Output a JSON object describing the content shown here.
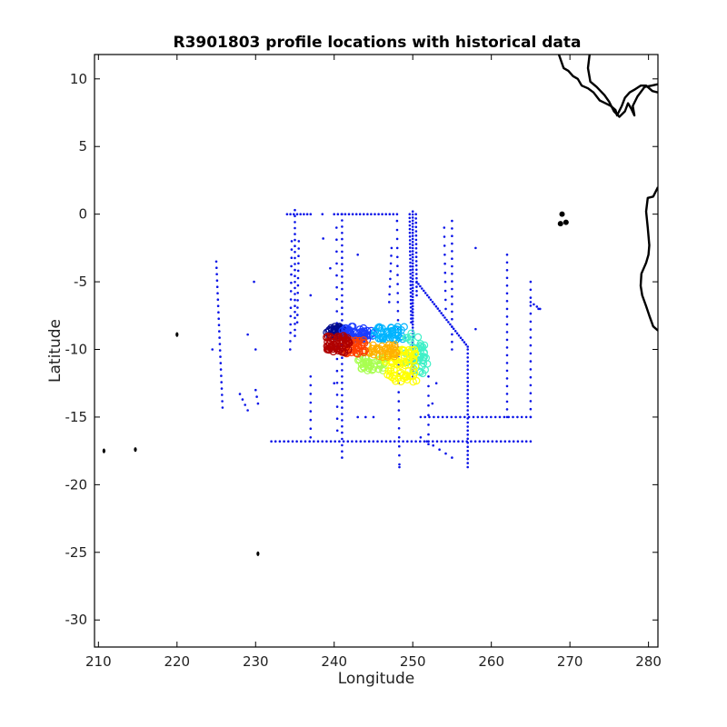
{
  "chart_data": {
    "type": "scatter",
    "title": "R3901803 profile locations with historical data",
    "xlabel": "Longitude",
    "ylabel": "Latitude",
    "xlim": [
      209.5,
      281.2
    ],
    "ylim": [
      -32.0,
      11.8
    ],
    "xticks": [
      210,
      220,
      230,
      240,
      250,
      260,
      270,
      280
    ],
    "yticks": [
      10,
      5,
      0,
      -5,
      -10,
      -15,
      -20,
      -25,
      -30
    ],
    "grid": false,
    "colors": {
      "historical": "#0a14e8",
      "coast": "#000000",
      "profile_ramp": [
        "#000a8f",
        "#1c3cff",
        "#00b4ff",
        "#40f0c8",
        "#a8ff50",
        "#ffff00",
        "#ffb000",
        "#ff4000",
        "#b00000"
      ]
    },
    "historical_tracks": [
      {
        "from": [
          225.0,
          -3.5
        ],
        "to": [
          225.8,
          -14.3
        ],
        "n": 24
      },
      {
        "from": [
          232.0,
          -16.8
        ],
        "to": [
          265.0,
          -16.8
        ],
        "n": 62
      },
      {
        "from": [
          234.0,
          0.0
        ],
        "to": [
          237.0,
          0.0
        ],
        "n": 8
      },
      {
        "from": [
          235.0,
          0.3
        ],
        "to": [
          235.0,
          -9.0
        ],
        "n": 22
      },
      {
        "from": [
          235.5,
          -2.0
        ],
        "to": [
          235.3,
          -8.0
        ],
        "n": 12
      },
      {
        "from": [
          234.6,
          -2.0
        ],
        "to": [
          234.4,
          -10.0
        ],
        "n": 14
      },
      {
        "from": [
          240.0,
          0.0
        ],
        "to": [
          248.0,
          0.0
        ],
        "n": 18
      },
      {
        "from": [
          241.0,
          0.0
        ],
        "to": [
          241.0,
          -18.0
        ],
        "n": 40
      },
      {
        "from": [
          240.3,
          -1.0
        ],
        "to": [
          240.4,
          -16.0
        ],
        "n": 18
      },
      {
        "from": [
          250.0,
          0.2
        ],
        "to": [
          250.0,
          -12.0
        ],
        "n": 55
      },
      {
        "from": [
          249.6,
          0.0
        ],
        "to": [
          249.8,
          -8.0
        ],
        "n": 30
      },
      {
        "from": [
          250.4,
          0.0
        ],
        "to": [
          250.5,
          -6.0
        ],
        "n": 20
      },
      {
        "from": [
          250.5,
          -5.0
        ],
        "to": [
          257.0,
          -9.8
        ],
        "n": 30
      },
      {
        "from": [
          257.0,
          -10.0
        ],
        "to": [
          257.0,
          -18.7
        ],
        "n": 30
      },
      {
        "from": [
          248.0,
          -0.5
        ],
        "to": [
          248.3,
          -18.5
        ],
        "n": 28
      },
      {
        "from": [
          247.3,
          -2.5
        ],
        "to": [
          247.0,
          -6.5
        ],
        "n": 8
      },
      {
        "from": [
          255.0,
          -0.5
        ],
        "to": [
          255.0,
          -10.0
        ],
        "n": 18
      },
      {
        "from": [
          254.0,
          -1.0
        ],
        "to": [
          254.2,
          -7.0
        ],
        "n": 10
      },
      {
        "from": [
          262.0,
          -3.0
        ],
        "to": [
          262.0,
          -15.0
        ],
        "n": 22
      },
      {
        "from": [
          251.0,
          -15.0
        ],
        "to": [
          265.0,
          -15.0
        ],
        "n": 26
      },
      {
        "from": [
          265.0,
          -5.0
        ],
        "to": [
          265.0,
          -15.0
        ],
        "n": 18
      },
      {
        "from": [
          265.0,
          -6.5
        ],
        "to": [
          266.2,
          -7.0
        ],
        "n": 4
      },
      {
        "from": [
          237.0,
          -12.0
        ],
        "to": [
          237.0,
          -16.5
        ],
        "n": 8
      },
      {
        "from": [
          230.0,
          -13.0
        ],
        "to": [
          230.3,
          -14.0
        ],
        "n": 3
      },
      {
        "from": [
          228.0,
          -13.3
        ],
        "to": [
          229.0,
          -14.5
        ],
        "n": 4
      },
      {
        "from": [
          251.0,
          -16.5
        ],
        "to": [
          255.0,
          -18.0
        ],
        "n": 6
      },
      {
        "from": [
          252.0,
          -12.0
        ],
        "to": [
          252.0,
          -17.0
        ],
        "n": 8
      }
    ],
    "historical_points": [
      [
        229.0,
        -8.9
      ],
      [
        229.8,
        -5.0
      ],
      [
        230.0,
        -10.0
      ],
      [
        237.0,
        -6.0
      ],
      [
        238.5,
        0.0
      ],
      [
        243.0,
        -3.0
      ],
      [
        244.0,
        -15.0
      ],
      [
        243.0,
        -15.0
      ],
      [
        245.0,
        -15.0
      ],
      [
        253.0,
        -12.5
      ],
      [
        252.5,
        -14.0
      ],
      [
        258.0,
        -2.5
      ],
      [
        258.0,
        -8.5
      ],
      [
        266.0,
        -7.0
      ],
      [
        248.3,
        -18.7
      ],
      [
        224.5,
        -10.0
      ],
      [
        238.6,
        -1.8
      ],
      [
        239.5,
        -4.0
      ],
      [
        240.0,
        -12.5
      ]
    ],
    "profile_clusters": [
      {
        "x": [
          239.0,
          241.5
        ],
        "y": [
          -8.3,
          -9.1
        ],
        "color": 0,
        "n": 40
      },
      {
        "x": [
          241.0,
          245.0
        ],
        "y": [
          -8.3,
          -9.3
        ],
        "color": 1,
        "n": 55
      },
      {
        "x": [
          245.0,
          249.0
        ],
        "y": [
          -8.3,
          -9.3
        ],
        "color": 2,
        "n": 45
      },
      {
        "x": [
          249.0,
          251.5
        ],
        "y": [
          -8.8,
          -11.0
        ],
        "color": 3,
        "n": 30
      },
      {
        "x": [
          250.0,
          252.0
        ],
        "y": [
          -10.5,
          -11.8
        ],
        "color": 3,
        "n": 20
      },
      {
        "x": [
          243.0,
          246.5
        ],
        "y": [
          -10.5,
          -11.6
        ],
        "color": 4,
        "n": 40
      },
      {
        "x": [
          246.5,
          250.5
        ],
        "y": [
          -10.0,
          -12.4
        ],
        "color": 5,
        "n": 70
      },
      {
        "x": [
          244.0,
          248.0
        ],
        "y": [
          -9.6,
          -10.6
        ],
        "color": 6,
        "n": 40
      },
      {
        "x": [
          241.5,
          244.0
        ],
        "y": [
          -9.3,
          -10.4
        ],
        "color": 7,
        "n": 35
      },
      {
        "x": [
          239.0,
          242.0
        ],
        "y": [
          -9.0,
          -10.3
        ],
        "color": 8,
        "n": 60
      }
    ],
    "islands": [
      [
        220.0,
        -8.9
      ],
      [
        230.3,
        -25.1
      ],
      [
        210.7,
        -17.5
      ],
      [
        214.7,
        -17.4
      ]
    ],
    "coastlines": [
      [
        [
          268.6,
          11.8
        ],
        [
          269.2,
          10.8
        ],
        [
          269.8,
          10.6
        ],
        [
          270.4,
          10.2
        ],
        [
          271.0,
          10.0
        ],
        [
          271.5,
          9.5
        ],
        [
          272.3,
          9.3
        ],
        [
          273.0,
          9.0
        ],
        [
          273.8,
          8.4
        ],
        [
          274.5,
          8.2
        ],
        [
          275.2,
          8.0
        ],
        [
          275.8,
          7.7
        ],
        [
          276.0,
          7.3
        ],
        [
          276.6,
          8.0
        ],
        [
          277.0,
          8.6
        ],
        [
          277.6,
          9.0
        ],
        [
          278.2,
          9.2
        ],
        [
          279.0,
          9.5
        ],
        [
          279.7,
          9.5
        ],
        [
          280.5,
          9.1
        ],
        [
          281.2,
          9.0
        ]
      ],
      [
        [
          272.5,
          11.8
        ],
        [
          272.3,
          10.8
        ],
        [
          272.6,
          9.8
        ],
        [
          273.4,
          9.4
        ],
        [
          274.4,
          8.8
        ],
        [
          275.0,
          8.3
        ],
        [
          275.6,
          7.6
        ],
        [
          276.3,
          7.2
        ],
        [
          277.0,
          7.6
        ],
        [
          277.4,
          8.2
        ],
        [
          277.8,
          7.8
        ],
        [
          278.2,
          7.3
        ],
        [
          278.0,
          8.0
        ],
        [
          278.6,
          8.7
        ],
        [
          279.5,
          9.4
        ],
        [
          280.4,
          9.5
        ],
        [
          281.2,
          9.6
        ]
      ],
      [
        [
          281.2,
          2.0
        ],
        [
          280.6,
          1.3
        ],
        [
          279.9,
          1.2
        ],
        [
          279.7,
          0.2
        ],
        [
          279.9,
          -1.0
        ],
        [
          280.1,
          -2.3
        ],
        [
          280.0,
          -3.0
        ],
        [
          279.7,
          -3.6
        ],
        [
          279.1,
          -4.4
        ],
        [
          279.0,
          -5.3
        ],
        [
          279.2,
          -6.0
        ],
        [
          279.7,
          -6.8
        ],
        [
          280.1,
          -7.5
        ],
        [
          280.6,
          -8.3
        ],
        [
          281.2,
          -8.6
        ]
      ]
    ],
    "coast_blobs": [
      [
        269.0,
        0.0
      ],
      [
        269.5,
        -0.6
      ],
      [
        268.8,
        -0.7
      ]
    ]
  }
}
